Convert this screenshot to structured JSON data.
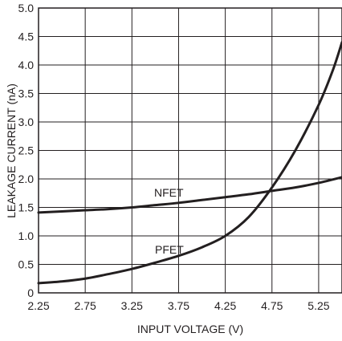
{
  "chart_data": {
    "type": "line",
    "xlabel": "INPUT VOLTAGE (V)",
    "ylabel": "LEAKAGE CURRENT (nA)",
    "xlim": [
      2.25,
      5.5
    ],
    "ylim": [
      0,
      5.0
    ],
    "x_ticks": [
      "2.25",
      "2.75",
      "3.25",
      "3.75",
      "4.25",
      "4.75",
      "5.25"
    ],
    "x_tick_values": [
      2.25,
      2.75,
      3.25,
      3.75,
      4.25,
      4.75,
      5.25
    ],
    "y_ticks": [
      "0",
      "0.5",
      "1.0",
      "1.5",
      "2.0",
      "2.5",
      "3.0",
      "3.5",
      "4.0",
      "4.5",
      "5.0"
    ],
    "y_tick_values": [
      0,
      0.5,
      1.0,
      1.5,
      2.0,
      2.5,
      3.0,
      3.5,
      4.0,
      4.5,
      5.0
    ],
    "grid": true,
    "series": [
      {
        "name": "NFET",
        "x": [
          2.25,
          2.5,
          2.75,
          3.0,
          3.25,
          3.5,
          3.75,
          4.0,
          4.25,
          4.5,
          4.75,
          5.0,
          5.25,
          5.5
        ],
        "values": [
          1.41,
          1.43,
          1.45,
          1.47,
          1.5,
          1.54,
          1.58,
          1.63,
          1.68,
          1.73,
          1.79,
          1.85,
          1.93,
          2.03
        ]
      },
      {
        "name": "PFET",
        "x": [
          2.25,
          2.5,
          2.75,
          3.0,
          3.25,
          3.5,
          3.75,
          4.0,
          4.25,
          4.5,
          4.75,
          5.0,
          5.25,
          5.4,
          5.5
        ],
        "values": [
          0.17,
          0.2,
          0.25,
          0.33,
          0.42,
          0.53,
          0.65,
          0.8,
          1.0,
          1.33,
          1.85,
          2.5,
          3.3,
          3.9,
          4.4
        ]
      }
    ],
    "annotations": [
      {
        "text": "NFET",
        "series": 0
      },
      {
        "text": "PFET",
        "series": 1
      }
    ]
  }
}
